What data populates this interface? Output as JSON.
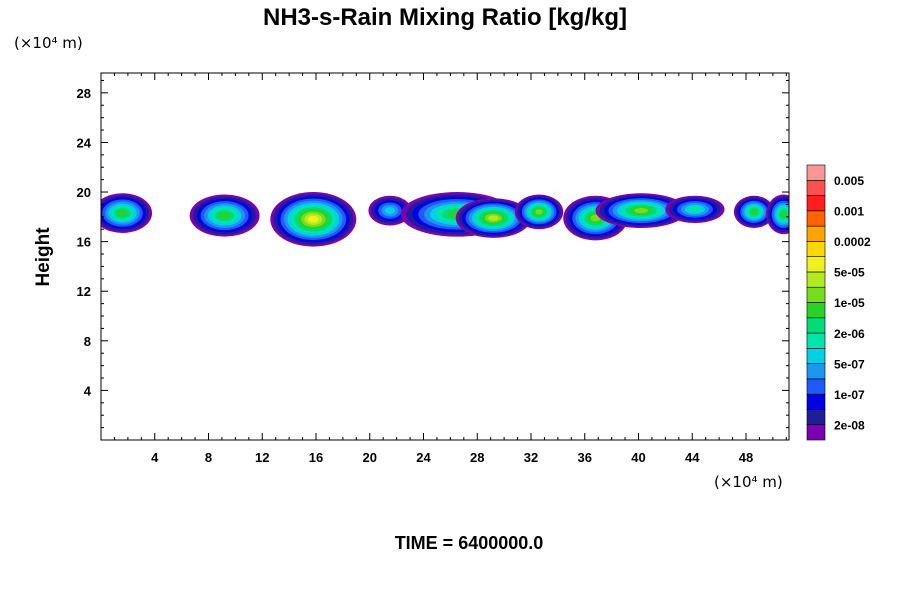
{
  "chart_data": {
    "type": "heatmap",
    "title": "NH3-s-Rain Mixing Ratio [kg/kg]",
    "xlabel": "",
    "ylabel": "Height",
    "x_unit": "(×10⁴ m)",
    "y_unit": "(×10⁴ m)",
    "x_ticks": [
      4,
      8,
      12,
      16,
      20,
      24,
      28,
      32,
      36,
      40,
      44,
      48
    ],
    "y_ticks": [
      4,
      8,
      12,
      16,
      20,
      24,
      28
    ],
    "xlim": [
      0,
      51.2
    ],
    "ylim": [
      0,
      29.6
    ],
    "colorbar": {
      "labels": [
        "0.005",
        "0.001",
        "0.0002",
        "5e-05",
        "1e-05",
        "2e-06",
        "5e-07",
        "1e-07",
        "2e-08"
      ],
      "colors": [
        "#7b00b4",
        "#1e1e96",
        "#0000e6",
        "#1e5aff",
        "#1e96f0",
        "#00d2e6",
        "#00e6aa",
        "#00dc78",
        "#28d228",
        "#78dc1e",
        "#b4eb1e",
        "#f0f01e",
        "#ffd700",
        "#ffa500",
        "#ff6400",
        "#ff1e1e",
        "#ff5050",
        "#ff9696"
      ]
    },
    "clouds": [
      {
        "x": 1.6,
        "y": 18.3,
        "rx": 2.2,
        "ry": 1.6,
        "level": 8
      },
      {
        "x": 9.2,
        "y": 18.1,
        "rx": 2.6,
        "ry": 1.7,
        "level": 8
      },
      {
        "x": 15.8,
        "y": 17.8,
        "rx": 3.2,
        "ry": 2.2,
        "level": 11
      },
      {
        "x": 21.5,
        "y": 18.5,
        "rx": 1.6,
        "ry": 1.2,
        "level": 5
      },
      {
        "x": 26.5,
        "y": 18.2,
        "rx": 4.2,
        "ry": 1.8,
        "level": 8
      },
      {
        "x": 29.2,
        "y": 17.9,
        "rx": 2.8,
        "ry": 1.6,
        "level": 10
      },
      {
        "x": 32.6,
        "y": 18.4,
        "rx": 1.8,
        "ry": 1.4,
        "level": 9
      },
      {
        "x": 36.8,
        "y": 17.9,
        "rx": 2.4,
        "ry": 1.8,
        "level": 9
      },
      {
        "x": 40.2,
        "y": 18.5,
        "rx": 3.4,
        "ry": 1.4,
        "level": 9
      },
      {
        "x": 44.2,
        "y": 18.6,
        "rx": 2.2,
        "ry": 1.1,
        "level": 6
      },
      {
        "x": 48.6,
        "y": 18.4,
        "rx": 1.5,
        "ry": 1.3,
        "level": 8
      },
      {
        "x": 50.8,
        "y": 18.2,
        "rx": 1.3,
        "ry": 1.6,
        "level": 8
      }
    ],
    "time_label": "TIME = 6400000.0"
  }
}
